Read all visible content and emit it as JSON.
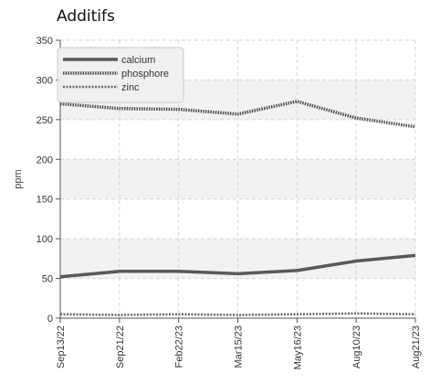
{
  "chart_data": {
    "type": "line",
    "title": "Additifs",
    "ylabel": "ppm",
    "xlabel": "",
    "ylim": [
      0,
      350
    ],
    "yticks": [
      0,
      50,
      100,
      150,
      200,
      250,
      300,
      350
    ],
    "categories": [
      "Sep13/22",
      "Sep21/22",
      "Feb22/23",
      "Mar15/23",
      "May16/23",
      "Aug10/23",
      "Aug21/23"
    ],
    "legend_position": "top-left",
    "grid": true,
    "series": [
      {
        "name": "calcium",
        "style": "solid",
        "color": "#555555",
        "values": [
          52,
          59,
          59,
          56,
          60,
          72,
          79
        ]
      },
      {
        "name": "phosphore",
        "style": "dotted",
        "color": "#555555",
        "values": [
          270,
          264,
          263,
          257,
          273,
          252,
          241
        ]
      },
      {
        "name": "zinc",
        "style": "dashed",
        "color": "#666666",
        "values": [
          5,
          4,
          5,
          4,
          5,
          6,
          5
        ]
      }
    ]
  }
}
